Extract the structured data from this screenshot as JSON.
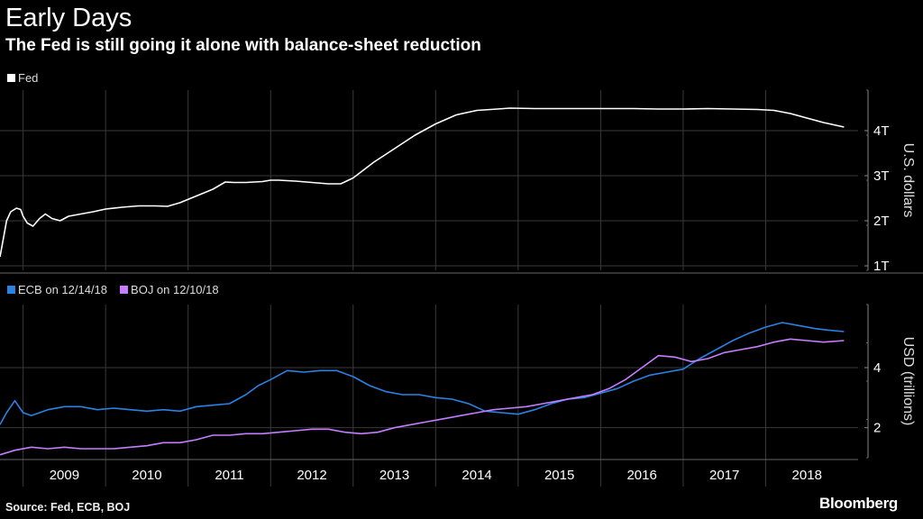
{
  "title": "Early Days",
  "subtitle": "The Fed is still going it alone with balance-sheet reduction",
  "source": "Source: Fed, ECB, BOJ",
  "brand": "Bloomberg",
  "colors": {
    "fed": "#ffffff",
    "ecb": "#2a82e4",
    "boj": "#c77dff",
    "grid": "#3a3a3a",
    "background": "#000000"
  },
  "chart_data": [
    {
      "type": "line",
      "ylabel": "U.S. dollars",
      "ylim": [
        0.9,
        4.9
      ],
      "yticks": [
        {
          "value": 1,
          "label": "1T"
        },
        {
          "value": 2,
          "label": "2T"
        },
        {
          "value": 3,
          "label": "3T"
        },
        {
          "value": 4,
          "label": "4T"
        }
      ],
      "xlim": [
        2008.72,
        2019.12
      ],
      "legend_position": "top-left",
      "series": [
        {
          "name": "Fed",
          "color": "#ffffff",
          "x": [
            2008.72,
            2008.76,
            2008.8,
            2008.85,
            2008.92,
            2008.97,
            2009.0,
            2009.05,
            2009.12,
            2009.2,
            2009.27,
            2009.35,
            2009.45,
            2009.55,
            2009.7,
            2009.85,
            2010.0,
            2010.2,
            2010.4,
            2010.6,
            2010.75,
            2010.9,
            2011.1,
            2011.3,
            2011.45,
            2011.55,
            2011.7,
            2011.9,
            2012.0,
            2012.1,
            2012.3,
            2012.5,
            2012.7,
            2012.85,
            2013.0,
            2013.25,
            2013.5,
            2013.75,
            2014.0,
            2014.25,
            2014.5,
            2014.75,
            2014.9,
            2015.2,
            2015.5,
            2015.8,
            2016.1,
            2016.4,
            2016.7,
            2017.0,
            2017.3,
            2017.6,
            2017.9,
            2018.1,
            2018.3,
            2018.5,
            2018.7,
            2018.95
          ],
          "values": [
            1.2,
            1.6,
            2.0,
            2.2,
            2.28,
            2.25,
            2.1,
            1.95,
            1.88,
            2.05,
            2.15,
            2.05,
            2.0,
            2.1,
            2.15,
            2.2,
            2.26,
            2.3,
            2.33,
            2.33,
            2.32,
            2.4,
            2.55,
            2.7,
            2.86,
            2.85,
            2.85,
            2.87,
            2.9,
            2.9,
            2.88,
            2.85,
            2.82,
            2.82,
            2.95,
            3.3,
            3.6,
            3.9,
            4.15,
            4.35,
            4.45,
            4.48,
            4.5,
            4.49,
            4.49,
            4.49,
            4.49,
            4.49,
            4.48,
            4.48,
            4.49,
            4.48,
            4.47,
            4.45,
            4.38,
            4.28,
            4.18,
            4.08
          ]
        }
      ]
    },
    {
      "type": "line",
      "ylabel": "USD (trillions)",
      "ylim": [
        1.0,
        6.1
      ],
      "yticks": [
        {
          "value": 2,
          "label": "2"
        },
        {
          "value": 4,
          "label": "4"
        }
      ],
      "xlim": [
        2008.72,
        2019.12
      ],
      "xticks": [
        "2009",
        "2010",
        "2011",
        "2012",
        "2013",
        "2014",
        "2015",
        "2016",
        "2017",
        "2018"
      ],
      "legend_position": "top-left",
      "series": [
        {
          "name": "ECB on 12/14/18",
          "color": "#2a82e4",
          "x": [
            2008.72,
            2008.8,
            2008.9,
            2009.0,
            2009.1,
            2009.3,
            2009.5,
            2009.7,
            2009.9,
            2010.1,
            2010.3,
            2010.5,
            2010.7,
            2010.9,
            2011.1,
            2011.3,
            2011.5,
            2011.7,
            2011.85,
            2012.0,
            2012.2,
            2012.4,
            2012.6,
            2012.8,
            2013.0,
            2013.2,
            2013.4,
            2013.6,
            2013.8,
            2014.0,
            2014.2,
            2014.4,
            2014.6,
            2014.8,
            2015.0,
            2015.2,
            2015.4,
            2015.6,
            2015.8,
            2016.0,
            2016.2,
            2016.4,
            2016.6,
            2016.8,
            2017.0,
            2017.2,
            2017.4,
            2017.6,
            2017.8,
            2018.0,
            2018.2,
            2018.4,
            2018.6,
            2018.75,
            2018.95
          ],
          "values": [
            2.1,
            2.5,
            2.9,
            2.5,
            2.4,
            2.6,
            2.7,
            2.7,
            2.6,
            2.65,
            2.6,
            2.55,
            2.6,
            2.55,
            2.7,
            2.75,
            2.8,
            3.1,
            3.4,
            3.6,
            3.9,
            3.85,
            3.9,
            3.9,
            3.7,
            3.4,
            3.2,
            3.1,
            3.1,
            3.0,
            2.95,
            2.8,
            2.55,
            2.5,
            2.45,
            2.6,
            2.8,
            2.95,
            3.0,
            3.15,
            3.3,
            3.55,
            3.75,
            3.85,
            3.95,
            4.3,
            4.6,
            4.9,
            5.15,
            5.35,
            5.5,
            5.4,
            5.3,
            5.25,
            5.2
          ]
        },
        {
          "name": "BOJ on 12/10/18",
          "color": "#c77dff",
          "x": [
            2008.72,
            2008.9,
            2009.1,
            2009.3,
            2009.5,
            2009.7,
            2009.9,
            2010.1,
            2010.3,
            2010.5,
            2010.7,
            2010.9,
            2011.1,
            2011.3,
            2011.5,
            2011.7,
            2011.9,
            2012.1,
            2012.3,
            2012.5,
            2012.7,
            2012.9,
            2013.1,
            2013.3,
            2013.5,
            2013.7,
            2013.9,
            2014.1,
            2014.3,
            2014.5,
            2014.7,
            2014.9,
            2015.1,
            2015.3,
            2015.5,
            2015.7,
            2015.9,
            2016.1,
            2016.3,
            2016.5,
            2016.7,
            2016.9,
            2017.1,
            2017.3,
            2017.5,
            2017.7,
            2017.9,
            2018.1,
            2018.3,
            2018.5,
            2018.7,
            2018.95
          ],
          "values": [
            1.1,
            1.25,
            1.35,
            1.3,
            1.35,
            1.3,
            1.3,
            1.3,
            1.35,
            1.4,
            1.5,
            1.5,
            1.6,
            1.75,
            1.75,
            1.8,
            1.8,
            1.85,
            1.9,
            1.95,
            1.95,
            1.85,
            1.8,
            1.85,
            2.0,
            2.1,
            2.2,
            2.3,
            2.4,
            2.5,
            2.6,
            2.65,
            2.7,
            2.8,
            2.9,
            3.0,
            3.1,
            3.3,
            3.6,
            4.0,
            4.4,
            4.35,
            4.2,
            4.3,
            4.5,
            4.6,
            4.7,
            4.85,
            4.95,
            4.9,
            4.85,
            4.9
          ]
        }
      ]
    }
  ]
}
